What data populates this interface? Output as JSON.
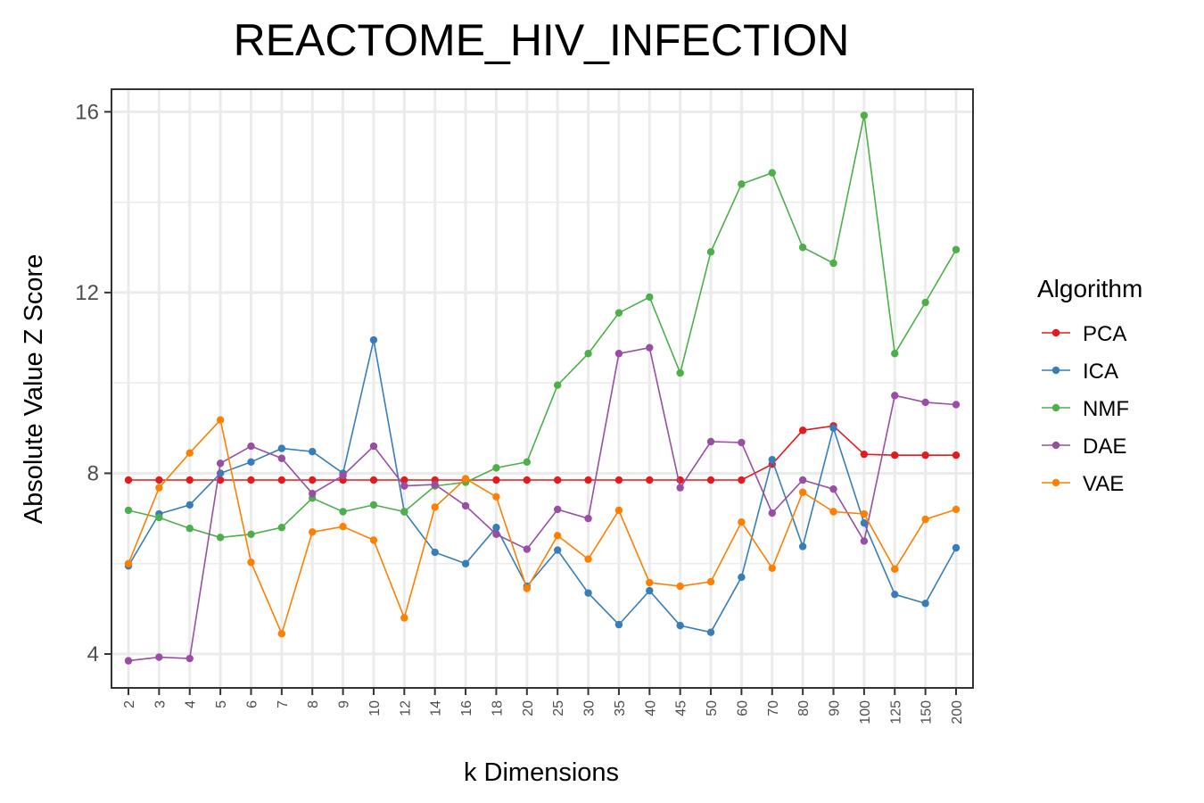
{
  "chart_data": {
    "type": "line",
    "title": "REACTOME_HIV_INFECTION",
    "xlabel": "k Dimensions",
    "ylabel": "Absolute Value Z Score",
    "categories": [
      "2",
      "3",
      "4",
      "5",
      "6",
      "7",
      "8",
      "9",
      "10",
      "12",
      "14",
      "16",
      "18",
      "20",
      "25",
      "30",
      "35",
      "40",
      "45",
      "50",
      "60",
      "70",
      "80",
      "90",
      "100",
      "125",
      "150",
      "200"
    ],
    "ylim": [
      3.25,
      16.5
    ],
    "yticks": [
      4,
      8,
      12,
      16
    ],
    "ytick_labels": [
      "4",
      "8",
      "12",
      "16"
    ],
    "grid": true,
    "legend": {
      "title": "Algorithm",
      "position": "right"
    },
    "series": [
      {
        "name": "PCA",
        "color": "#e41a1c",
        "values": [
          7.85,
          7.85,
          7.85,
          7.85,
          7.85,
          7.85,
          7.85,
          7.85,
          7.85,
          7.85,
          7.85,
          7.85,
          7.85,
          7.85,
          7.85,
          7.85,
          7.85,
          7.85,
          7.85,
          7.85,
          7.85,
          8.2,
          8.95,
          9.05,
          8.42,
          8.4,
          8.4,
          8.4
        ]
      },
      {
        "name": "ICA",
        "color": "#377eb8",
        "values": [
          5.95,
          7.1,
          7.3,
          8.0,
          8.25,
          8.55,
          8.48,
          8.0,
          10.95,
          7.15,
          6.25,
          6.0,
          6.8,
          5.5,
          6.3,
          5.35,
          4.65,
          5.4,
          4.63,
          4.48,
          5.7,
          8.3,
          6.38,
          9.0,
          6.9,
          5.32,
          5.12,
          6.35
        ]
      },
      {
        "name": "NMF",
        "color": "#4daf4a",
        "values": [
          7.18,
          7.02,
          6.78,
          6.58,
          6.65,
          6.8,
          7.45,
          7.15,
          7.3,
          7.15,
          7.72,
          7.8,
          8.12,
          8.25,
          9.95,
          10.65,
          11.55,
          11.9,
          10.22,
          12.9,
          14.4,
          14.65,
          13.0,
          12.65,
          15.92,
          10.65,
          11.78,
          12.95
        ]
      },
      {
        "name": "DAE",
        "color": "#984ea3",
        "values": [
          3.85,
          3.93,
          3.9,
          8.22,
          8.6,
          8.33,
          7.55,
          7.95,
          8.6,
          7.72,
          7.75,
          7.28,
          6.65,
          6.32,
          7.2,
          7.0,
          10.65,
          10.78,
          7.68,
          8.7,
          8.68,
          7.12,
          7.85,
          7.65,
          6.5,
          9.72,
          9.57,
          9.52
        ]
      },
      {
        "name": "VAE",
        "color": "#ff7f00",
        "values": [
          6.0,
          7.68,
          8.45,
          9.18,
          6.03,
          4.45,
          6.7,
          6.82,
          6.52,
          4.8,
          7.25,
          7.88,
          7.48,
          5.45,
          6.62,
          6.1,
          7.18,
          5.58,
          5.5,
          5.6,
          6.92,
          5.9,
          7.58,
          7.15,
          7.1,
          5.88,
          6.98,
          7.2
        ]
      }
    ]
  }
}
